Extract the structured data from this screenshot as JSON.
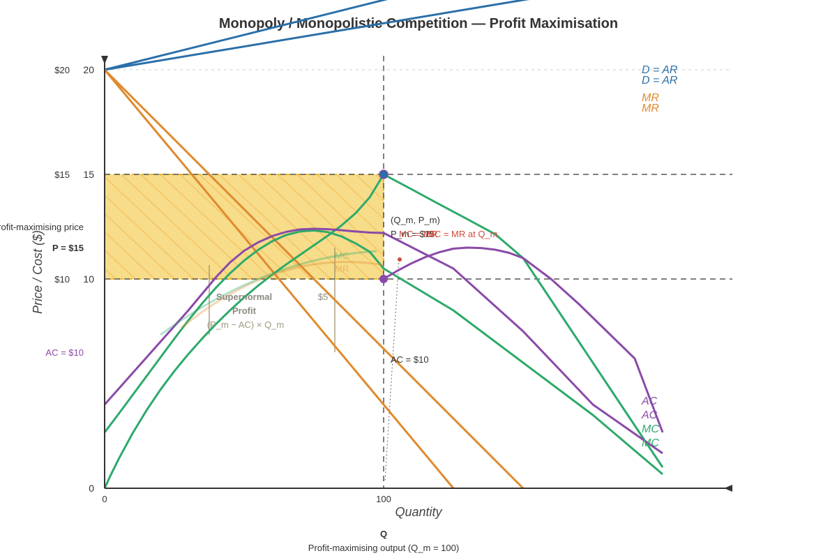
{
  "chart_data": {
    "type": "line",
    "title": "Monopoly / Monopolistic Competition — Profit Maximisation",
    "xlabel": "Quantity",
    "ylabel": "Price / Cost ($)",
    "xlim": [
      0,
      225
    ],
    "ylim": [
      0,
      24
    ],
    "x_ticks": [
      {
        "value": 0,
        "label": "0"
      },
      {
        "value": 100,
        "label": "100"
      }
    ],
    "y_ticks": [
      {
        "value": 0,
        "label": "0"
      },
      {
        "value": 10,
        "label": "10"
      },
      {
        "value": 15,
        "label": "15"
      },
      {
        "value": 20,
        "label": "20"
      }
    ],
    "y_price_labels": [
      {
        "value": 10,
        "label": "$10"
      },
      {
        "value": 15,
        "label": "$15"
      },
      {
        "value": 20,
        "label": "$20"
      }
    ],
    "series": [
      {
        "key": "ar1",
        "color": "#2a6fa8",
        "points": [
          [
            0,
            20
          ],
          [
            150,
            25
          ]
        ]
      },
      {
        "key": "ar2",
        "color": "#2a6fa8",
        "points": [
          [
            0,
            20
          ],
          [
            225,
            25
          ]
        ]
      },
      {
        "key": "mr1",
        "color": "#e08a2e",
        "points": [
          [
            0,
            20
          ],
          [
            125,
            0
          ]
        ]
      },
      {
        "key": "mr2",
        "color": "#e08a2e",
        "points": [
          [
            0,
            20
          ],
          [
            150,
            0
          ]
        ]
      },
      {
        "key": "mc1",
        "color": "#2eaa6a",
        "points": [
          [
            0,
            0
          ],
          [
            2,
            0.58
          ],
          [
            5,
            1.39
          ],
          [
            10,
            2.62
          ],
          [
            15,
            3.72
          ],
          [
            20,
            4.71
          ],
          [
            25,
            5.6
          ],
          [
            30,
            6.41
          ],
          [
            35,
            7.16
          ],
          [
            40,
            7.86
          ],
          [
            45,
            8.51
          ],
          [
            50,
            9.12
          ],
          [
            55,
            9.68
          ],
          [
            60,
            10.2
          ],
          [
            65,
            10.69
          ],
          [
            70,
            11.15
          ],
          [
            75,
            11.61
          ],
          [
            80,
            12.07
          ],
          [
            85,
            12.57
          ],
          [
            90,
            13.15
          ],
          [
            95,
            13.9
          ],
          [
            100,
            15
          ],
          [
            110,
            14.29
          ],
          [
            120,
            13.57
          ],
          [
            130,
            12.86
          ],
          [
            140,
            12.14
          ],
          [
            150,
            11.0
          ],
          [
            160,
            9.0
          ],
          [
            170,
            7.0
          ],
          [
            180,
            5.0
          ],
          [
            190,
            3.0
          ],
          [
            200,
            1.0
          ]
        ]
      },
      {
        "key": "mc2",
        "color": "#2eaa6a",
        "points": [
          [
            0,
            2.67
          ],
          [
            5,
            3.55
          ],
          [
            10,
            4.45
          ],
          [
            15,
            5.35
          ],
          [
            20,
            6.25
          ],
          [
            25,
            7.15
          ],
          [
            30,
            8.02
          ],
          [
            35,
            8.84
          ],
          [
            40,
            9.6
          ],
          [
            45,
            10.28
          ],
          [
            50,
            10.88
          ],
          [
            55,
            11.39
          ],
          [
            60,
            11.8
          ],
          [
            65,
            12.1
          ],
          [
            70,
            12.27
          ],
          [
            75,
            12.32
          ],
          [
            80,
            12.24
          ],
          [
            85,
            12.03
          ],
          [
            90,
            11.7
          ],
          [
            95,
            11.3
          ],
          [
            100,
            10.5
          ],
          [
            125,
            8.5
          ],
          [
            150,
            6.0
          ],
          [
            175,
            3.5
          ],
          [
            200,
            0.67
          ]
        ]
      },
      {
        "key": "ac1",
        "color": "#8a4aa8",
        "points": [
          [
            0,
            4.0
          ],
          [
            5,
            4.75
          ],
          [
            10,
            5.5
          ],
          [
            15,
            6.25
          ],
          [
            20,
            7.0
          ],
          [
            25,
            7.75
          ],
          [
            30,
            8.5
          ],
          [
            35,
            9.3
          ],
          [
            40,
            10.1
          ],
          [
            45,
            10.8
          ],
          [
            50,
            11.35
          ],
          [
            55,
            11.75
          ],
          [
            60,
            12.05
          ],
          [
            65,
            12.25
          ],
          [
            70,
            12.37
          ],
          [
            75,
            12.4
          ],
          [
            80,
            12.38
          ],
          [
            85,
            12.33
          ],
          [
            90,
            12.27
          ],
          [
            95,
            12.22
          ],
          [
            100,
            12.2
          ],
          [
            125,
            10.5
          ],
          [
            150,
            7.5
          ],
          [
            175,
            4.0
          ],
          [
            200,
            1.67
          ]
        ]
      },
      {
        "key": "ac2",
        "color": "#8a4aa8",
        "points": [
          [
            100,
            10.0
          ],
          [
            105,
            10.4
          ],
          [
            110,
            10.75
          ],
          [
            115,
            11.05
          ],
          [
            120,
            11.28
          ],
          [
            125,
            11.45
          ],
          [
            130,
            11.5
          ],
          [
            135,
            11.48
          ],
          [
            140,
            11.4
          ],
          [
            145,
            11.25
          ],
          [
            150,
            11.0
          ],
          [
            160,
            10.0
          ],
          [
            170,
            8.8
          ],
          [
            180,
            7.5
          ],
          [
            190,
            6.2
          ],
          [
            200,
            2.67
          ]
        ]
      }
    ],
    "equilibrium": {
      "Q_m": 100,
      "P_m": 15,
      "AC": 10
    },
    "profit_rect": {
      "x0": 0,
      "x1": 100,
      "y0": 10,
      "y1": 15,
      "color": "#f2c94c"
    },
    "legend_entries": [
      {
        "label": "D = AR",
        "color": "#2a6fa8"
      },
      {
        "label": "D = AR",
        "color": "#2a6fa8"
      },
      {
        "label": "MR",
        "color": "#e08a2e"
      },
      {
        "label": "MR",
        "color": "#e08a2e"
      },
      {
        "label": "AC",
        "color": "#8a4aa8"
      },
      {
        "label": "AC",
        "color": "#8a4aa8"
      },
      {
        "label": "MC",
        "color": "#2eaa6a"
      },
      {
        "label": "MC",
        "color": "#2eaa6a"
      }
    ],
    "annotations": {
      "qm_pm": "(Q_m, P_m)",
      "pm_value": "P_m = $15",
      "mc_mr": "MC = MR",
      "mc_mr_at": "MC = MR at Q_m",
      "ac_value": "AC = $10",
      "ac_left": "AC = $10",
      "p_left": "P = $15",
      "profit_price": "Profit-maximising price",
      "profit_line1": "Supernormal",
      "profit_line2": "Profit",
      "profit_formula": "(P_m − AC) × Q_m",
      "profit_diff": "$5",
      "faded_mc": "MC",
      "faded_mr": "MR",
      "q_label": "Q",
      "q_caption": "Profit-maximising output (Q_m = 100)"
    },
    "grid": false
  }
}
